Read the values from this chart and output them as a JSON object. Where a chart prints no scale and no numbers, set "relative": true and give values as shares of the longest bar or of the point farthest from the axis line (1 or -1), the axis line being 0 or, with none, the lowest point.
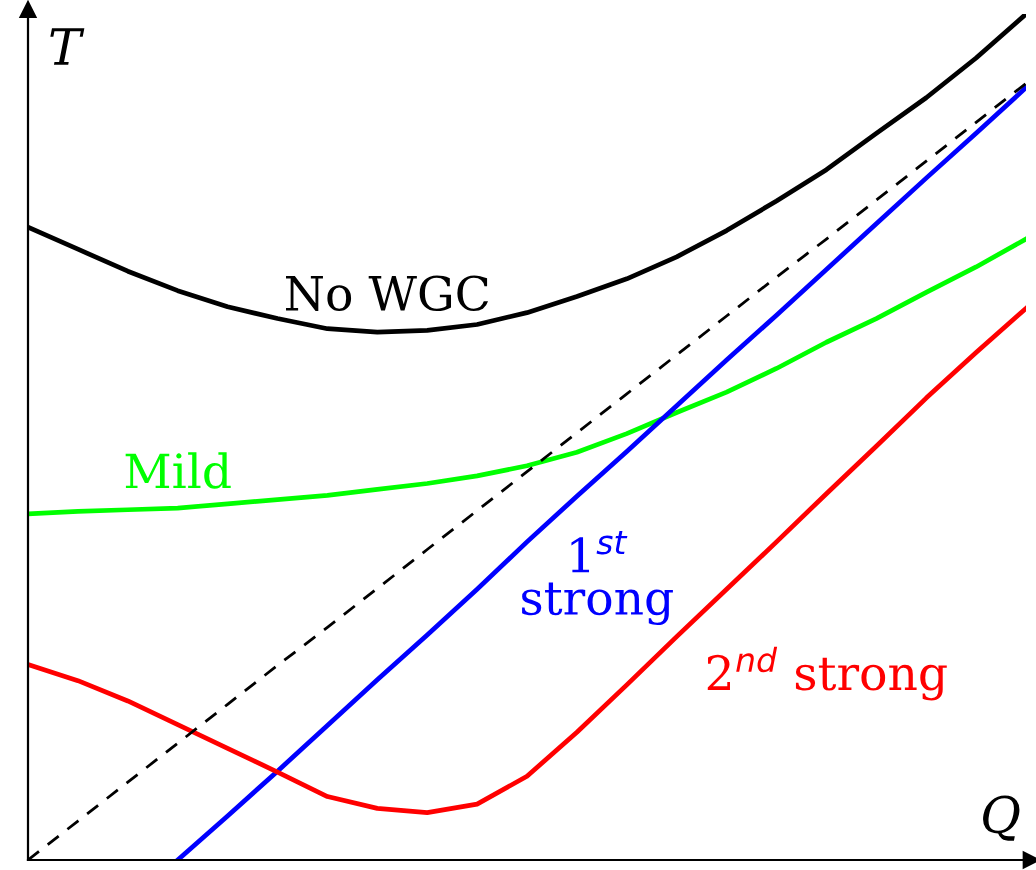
{
  "chart_data": {
    "type": "line",
    "relative": true,
    "xlabel": "Q",
    "ylabel": "T",
    "legend": false,
    "marker": "none",
    "categories": [
      null,
      null,
      null,
      null,
      null,
      null,
      null,
      null,
      null,
      null,
      null,
      null,
      null,
      null,
      null,
      null,
      null,
      null,
      null,
      null,
      null
    ],
    "series": [
      {
        "name": "No WGC",
        "color": "#000000",
        "values": [
          0.748,
          0.722,
          0.696,
          0.673,
          0.654,
          0.64,
          0.628,
          0.624,
          0.626,
          0.633,
          0.647,
          0.666,
          0.687,
          0.713,
          0.744,
          0.779,
          0.816,
          0.859,
          0.901,
          0.948,
          1.0
        ]
      },
      {
        "name": "Mild",
        "color": "#00ff00",
        "values": [
          0.409,
          0.412,
          0.414,
          0.416,
          0.421,
          0.426,
          0.431,
          0.438,
          0.445,
          0.454,
          0.466,
          0.482,
          0.504,
          0.529,
          0.553,
          0.581,
          0.612,
          0.64,
          0.671,
          0.701,
          0.734
        ]
      },
      {
        "name": "1$^{st}$\nstrong",
        "color": "#0000ff",
        "values": [
          null,
          null,
          null,
          0,
          0.052,
          0.105,
          0.159,
          0.213,
          0.266,
          0.32,
          0.376,
          0.43,
          0.483,
          0.537,
          0.591,
          0.644,
          0.698,
          0.752,
          0.806,
          0.859,
          0.913
        ]
      },
      {
        "name": "2$^{nd}$ strong",
        "color": "#ff0000",
        "values": [
          0.231,
          0.212,
          0.188,
          0.16,
          0.132,
          0.104,
          0.075,
          0.061,
          0.056,
          0.066,
          0.099,
          0.151,
          0.207,
          0.264,
          0.32,
          0.376,
          0.433,
          0.489,
          0.546,
          0.6,
          0.652
        ]
      },
      {
        "color": "#000000",
        "line_style": "dashed",
        "values": [
          0,
          0.046,
          0.092,
          0.138,
          0.184,
          0.23,
          0.275,
          0.321,
          0.367,
          0.413,
          0.459,
          0.505,
          0.551,
          0.597,
          0.643,
          0.689,
          0.734,
          0.78,
          0.826,
          0.872,
          0.918
        ]
      }
    ]
  }
}
